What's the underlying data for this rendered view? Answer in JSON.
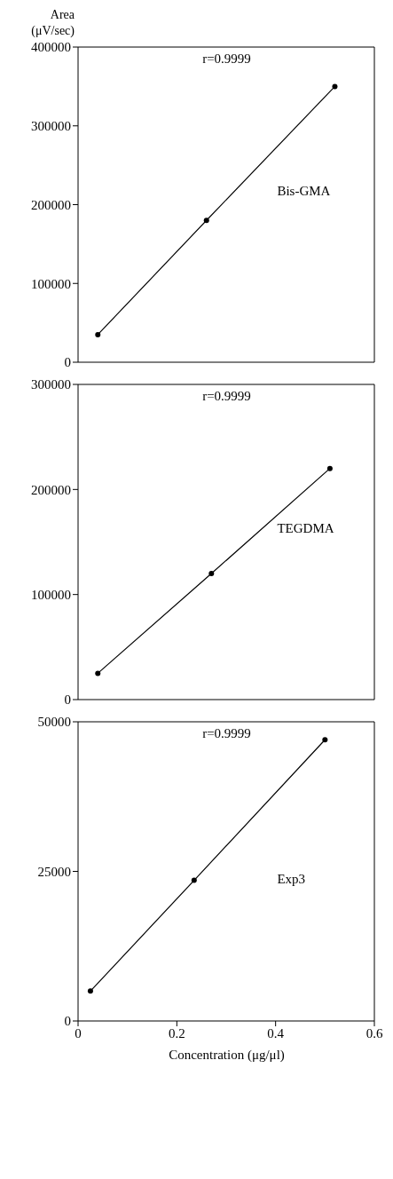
{
  "chart_data": [
    {
      "type": "line",
      "ylabel": "Area\n(μV/sec)",
      "x": [
        0.04,
        0.26,
        0.52
      ],
      "series": [
        {
          "name": "Bis-GMA",
          "color": "#000000",
          "values": [
            35000,
            180000,
            350000
          ]
        }
      ],
      "xlim": [
        0,
        0.6
      ],
      "xticks": [
        0,
        0.2,
        0.4,
        0.6
      ],
      "ylim": [
        0,
        400000
      ],
      "yticks": [
        0,
        100000,
        200000,
        300000,
        400000
      ],
      "annotations": [
        "r=0.9999"
      ],
      "marker": "circle",
      "tick_labels": "y"
    },
    {
      "type": "line",
      "x": [
        0.04,
        0.27,
        0.51
      ],
      "series": [
        {
          "name": "TEGDMA",
          "color": "#000000",
          "values": [
            25000,
            120000,
            220000
          ]
        }
      ],
      "xlim": [
        0,
        0.6
      ],
      "xticks": [
        0,
        0.2,
        0.4,
        0.6
      ],
      "ylim": [
        0,
        300000
      ],
      "yticks": [
        0,
        100000,
        200000,
        300000
      ],
      "annotations": [
        "r=0.9999"
      ],
      "marker": "circle",
      "tick_labels": "y"
    },
    {
      "type": "line",
      "xlabel": "Concentration (μg/μl)",
      "x": [
        0.025,
        0.235,
        0.5
      ],
      "series": [
        {
          "name": "Exp3",
          "color": "#000000",
          "values": [
            5000,
            23500,
            47000
          ]
        }
      ],
      "xlim": [
        0,
        0.6
      ],
      "xticks": [
        0,
        0.2,
        0.4,
        0.6
      ],
      "ylim": [
        0,
        50000
      ],
      "yticks": [
        0,
        25000,
        50000
      ],
      "annotations": [
        "r=0.9999"
      ],
      "marker": "circle"
    }
  ]
}
